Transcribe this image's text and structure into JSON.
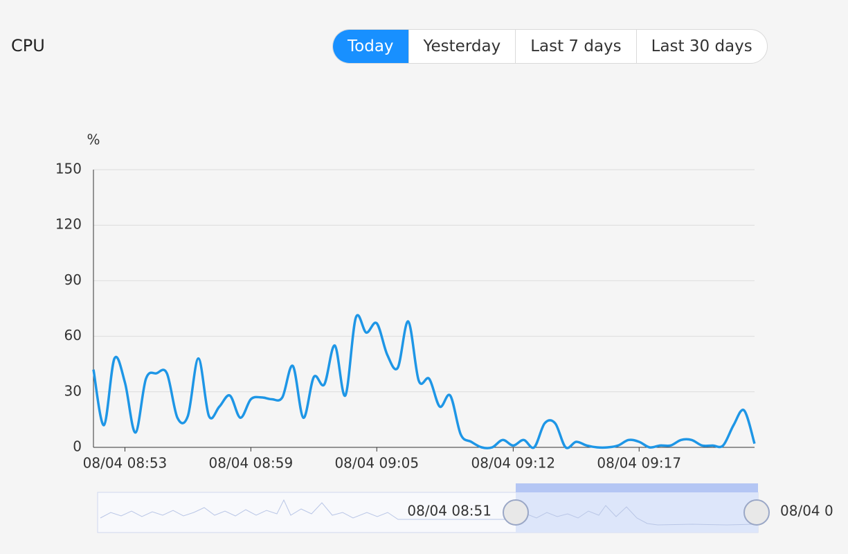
{
  "header": {
    "title": "CPU"
  },
  "range_buttons": [
    "Today",
    "Yesterday",
    "Last 7 days",
    "Last 30 days"
  ],
  "chart_data": {
    "type": "line",
    "y_label": "%",
    "categories": [
      null,
      null,
      null,
      "08/04 08:53",
      null,
      null,
      null,
      null,
      null,
      null,
      null,
      null,
      null,
      null,
      null,
      "08/04 08:59",
      null,
      null,
      null,
      null,
      null,
      null,
      null,
      null,
      null,
      null,
      null,
      "08/04 09:05",
      null,
      null,
      null,
      null,
      null,
      null,
      null,
      null,
      null,
      null,
      null,
      null,
      "08/04 09:12",
      null,
      null,
      null,
      null,
      null,
      null,
      null,
      null,
      null,
      null,
      null,
      "08/04 09:17",
      null,
      null,
      null,
      null,
      null,
      null,
      null,
      null,
      null,
      null,
      null
    ],
    "values": [
      42,
      12,
      48,
      35,
      8,
      37,
      40,
      40,
      16,
      17,
      48,
      17,
      22,
      28,
      16,
      26,
      27,
      26,
      27,
      44,
      16,
      38,
      34,
      55,
      28,
      70,
      62,
      67,
      50,
      43,
      68,
      36,
      37,
      22,
      28,
      7,
      3,
      0,
      0,
      4,
      1,
      4,
      0,
      13,
      13,
      0,
      3,
      1,
      0,
      0,
      1,
      4,
      3,
      0,
      1,
      1,
      4,
      4,
      1,
      1,
      1,
      12,
      20,
      2
    ],
    "color": "#1e96e6",
    "ylim": [
      0,
      150
    ],
    "yticks": [
      0,
      30,
      60,
      90,
      120,
      150
    ],
    "grid": true,
    "zoom": {
      "start_label": "08/04 08:51",
      "end_label": "08/04 0"
    }
  }
}
